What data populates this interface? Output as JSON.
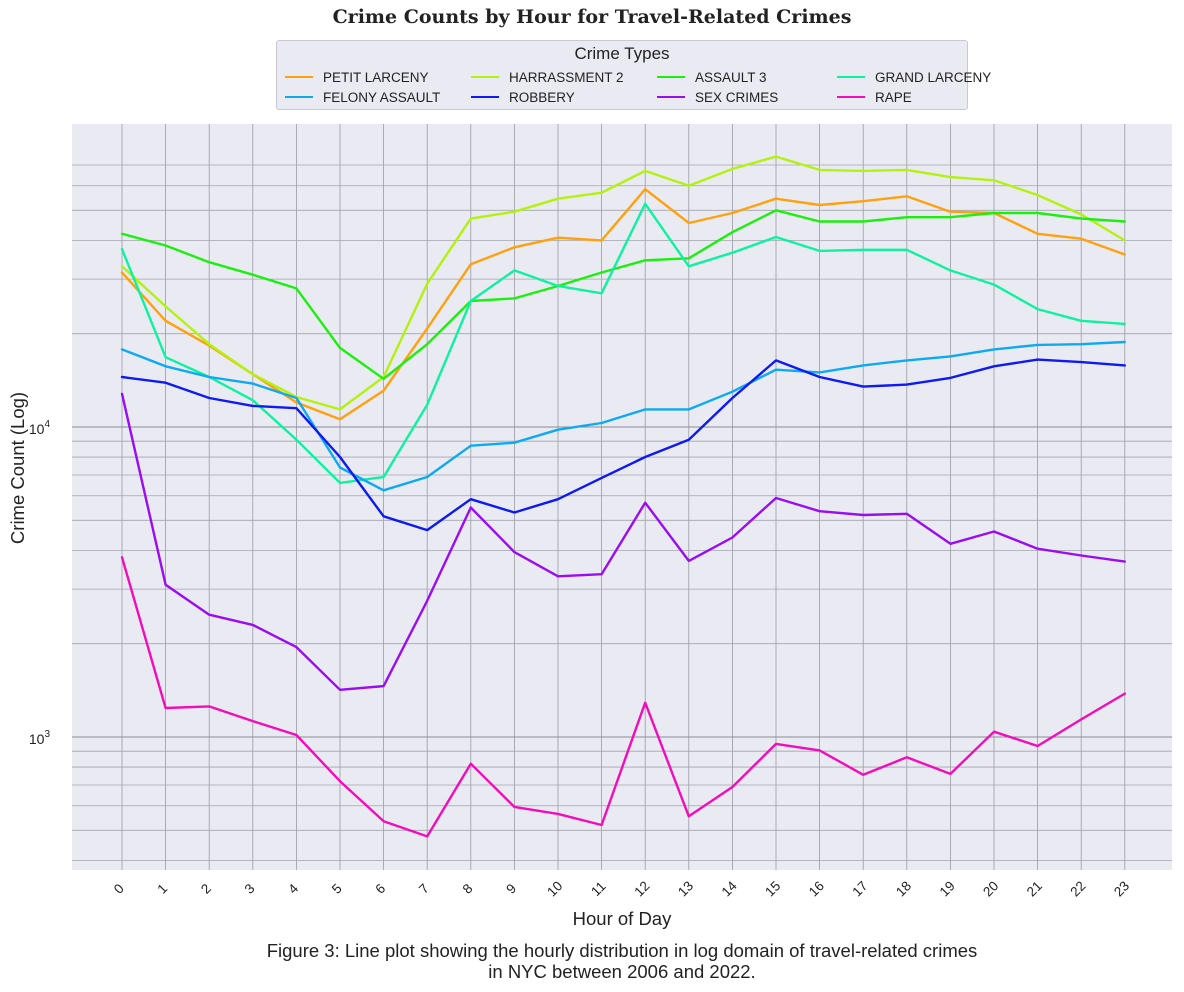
{
  "title": "Crime Counts by Hour for Travel-Related Crimes",
  "caption_lines": [
    "Figure 3: Line plot showing the hourly distribution in log domain of travel-related crimes",
    "in NYC between 2006 and 2022."
  ],
  "chart_data": {
    "type": "line",
    "title": "Crime Counts by Hour for Travel-Related Crimes",
    "xlabel": "Hour of Day",
    "ylabel": "Crime Count (Log)",
    "yscale": "log",
    "ylim": [
      380,
      70000
    ],
    "x": [
      0,
      1,
      2,
      3,
      4,
      5,
      6,
      7,
      8,
      9,
      10,
      11,
      12,
      13,
      14,
      15,
      16,
      17,
      18,
      19,
      20,
      21,
      22,
      23
    ],
    "x_tick_labels": [
      "0",
      "1",
      "2",
      "3",
      "4",
      "5",
      "6",
      "7",
      "8",
      "9",
      "10",
      "11",
      "12",
      "13",
      "14",
      "15",
      "16",
      "17",
      "18",
      "19",
      "20",
      "21",
      "22",
      "23"
    ],
    "y_tick_labels": [
      {
        "value": 1000,
        "base": "10",
        "exp": "3"
      },
      {
        "value": 10000,
        "base": "10",
        "exp": "4"
      }
    ],
    "grid": true,
    "legend": {
      "title": "Crime Types",
      "placement": "top-center",
      "columns": 4
    },
    "series": [
      {
        "name": "PETIT LARCENY",
        "color": "#ffa10d",
        "values": [
          31500,
          22000,
          18300,
          14800,
          12000,
          10600,
          13100,
          20800,
          33500,
          38000,
          40800,
          40000,
          58500,
          45500,
          49000,
          54500,
          52000,
          53500,
          55500,
          49500,
          49000,
          42000,
          40500,
          36000
        ]
      },
      {
        "name": "HARRASSMENT 2",
        "color": "#b3f20d",
        "values": [
          33000,
          24500,
          18500,
          14800,
          12500,
          11400,
          14500,
          29000,
          47000,
          49500,
          54500,
          57000,
          67000,
          60000,
          68000,
          74500,
          67500,
          67000,
          67500,
          64000,
          62500,
          56000,
          48500,
          40000
        ]
      },
      {
        "name": "ASSAULT 3",
        "color": "#1af00d",
        "values": [
          42000,
          38500,
          34000,
          31000,
          28000,
          18000,
          14300,
          18500,
          25500,
          26000,
          28500,
          31500,
          34500,
          35000,
          42500,
          50000,
          46000,
          46000,
          47500,
          47500,
          49000,
          49000,
          47000,
          46000
        ]
      },
      {
        "name": "GRAND LARCENY",
        "color": "#0df2a1",
        "values": [
          37500,
          16800,
          14500,
          12200,
          9100,
          6600,
          6900,
          11800,
          25500,
          32000,
          28500,
          27000,
          52500,
          33000,
          36500,
          41000,
          37000,
          37300,
          37300,
          32000,
          28800,
          24000,
          22000,
          21500
        ]
      },
      {
        "name": "FELONY ASSAULT",
        "color": "#0daaf2",
        "values": [
          17800,
          15700,
          14500,
          13800,
          12400,
          7400,
          6250,
          6900,
          8700,
          8900,
          9800,
          10300,
          11400,
          11400,
          13000,
          15300,
          15000,
          15800,
          16400,
          16900,
          17800,
          18400,
          18500,
          18800
        ]
      },
      {
        "name": "ROBBERY",
        "color": "#0d1af2",
        "values": [
          14500,
          13900,
          12400,
          11700,
          11500,
          8000,
          5150,
          4650,
          5850,
          5300,
          5850,
          6850,
          8000,
          9100,
          12400,
          16400,
          14500,
          13500,
          13700,
          14400,
          15700,
          16500,
          16200,
          15800
        ]
      },
      {
        "name": "SEX CRIMES",
        "color": "#9a0df2",
        "values": [
          12800,
          3100,
          2480,
          2300,
          1950,
          1420,
          1460,
          2750,
          5500,
          3950,
          3300,
          3350,
          5700,
          3700,
          4400,
          5900,
          5350,
          5200,
          5250,
          4200,
          4600,
          4050,
          3850,
          3680
        ]
      },
      {
        "name": "RAPE",
        "color": "#f20dbb",
        "values": [
          3800,
          1240,
          1255,
          1125,
          1015,
          720,
          535,
          478,
          820,
          595,
          565,
          520,
          1290,
          555,
          690,
          950,
          905,
          755,
          860,
          760,
          1040,
          935,
          1140,
          1380
        ]
      }
    ]
  }
}
